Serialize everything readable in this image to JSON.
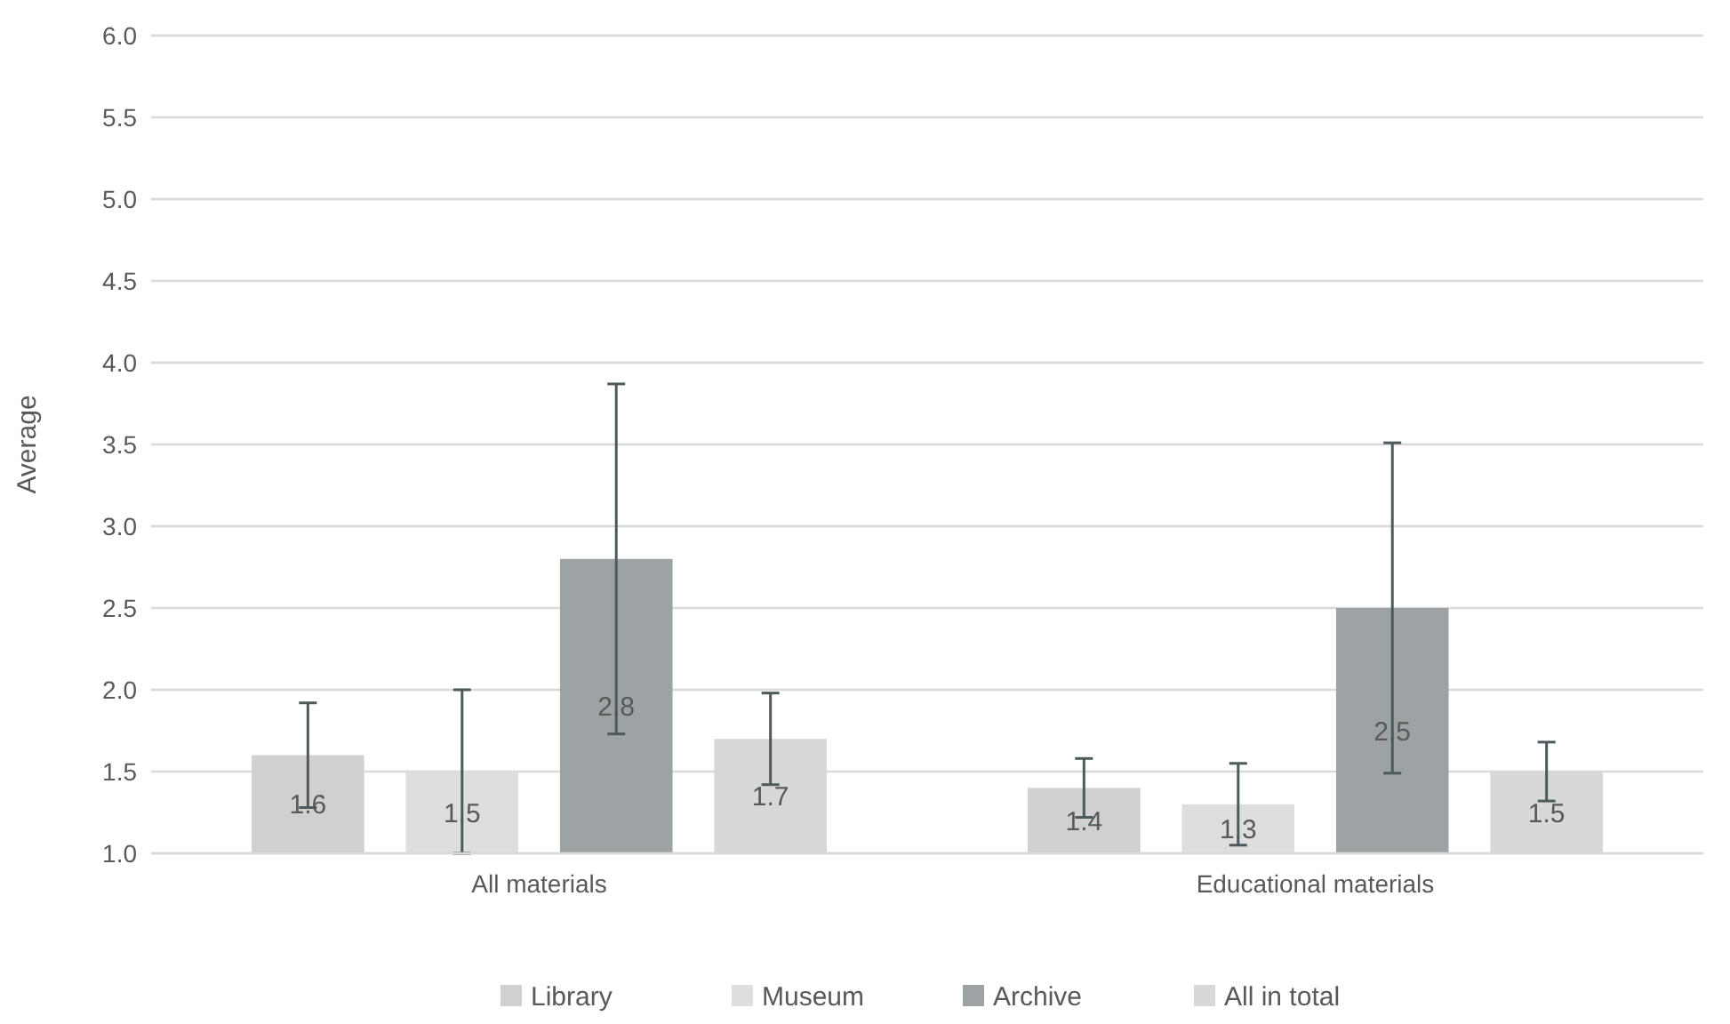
{
  "chart_data": {
    "type": "bar",
    "ylabel": "Average",
    "categories": [
      "All materials",
      "Educational materials"
    ],
    "series": [
      {
        "name": "Library",
        "color": "#d0d0d0",
        "values": [
          1.6,
          1.4
        ],
        "errors": [
          0.32,
          0.18
        ]
      },
      {
        "name": "Museum",
        "color": "#dedede",
        "values": [
          1.5,
          1.3
        ],
        "errors": [
          0.5,
          0.25
        ]
      },
      {
        "name": "Archive",
        "color": "#9da3a5",
        "values": [
          2.8,
          2.5
        ],
        "errors": [
          1.07,
          1.01
        ]
      },
      {
        "name": "All in total",
        "color": "#d8d8d8",
        "values": [
          1.7,
          1.5
        ],
        "errors": [
          0.28,
          0.18
        ]
      }
    ],
    "ylim": [
      1,
      6
    ],
    "yticks": [
      {
        "value": 1,
        "label": "1.0"
      },
      1.5,
      {
        "value": 2,
        "label": "2.0"
      },
      2.5,
      {
        "value": 3,
        "label": "3.0"
      },
      3.5,
      {
        "value": 4,
        "label": "4.0"
      },
      4.5,
      {
        "value": 5,
        "label": "5.0"
      },
      5.5,
      {
        "value": 6,
        "label": "6.0"
      }
    ],
    "grid": "y",
    "legend": "bottom",
    "data_labels": true
  }
}
